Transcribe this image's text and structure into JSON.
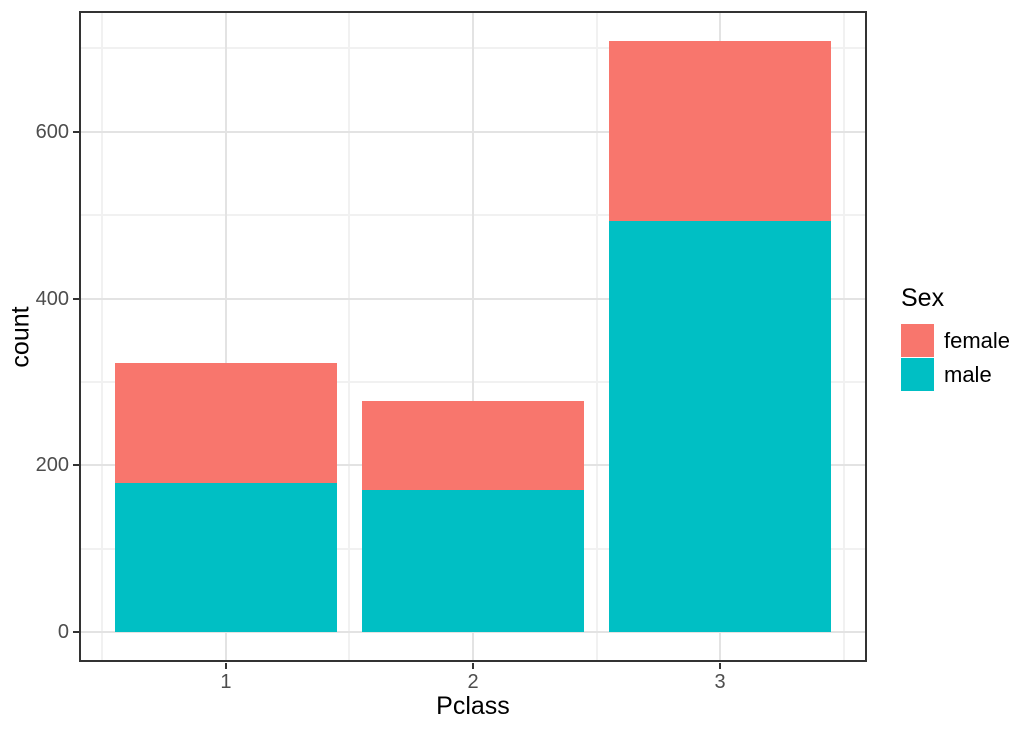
{
  "chart_data": {
    "type": "bar",
    "stacked": true,
    "title": "",
    "xlabel": "Pclass",
    "ylabel": "count",
    "categories": [
      "1",
      "2",
      "3"
    ],
    "x_positions": [
      1,
      2,
      3
    ],
    "series": [
      {
        "name": "female",
        "color": "#F8766D",
        "values": [
          144,
          106,
          216
        ]
      },
      {
        "name": "male",
        "color": "#00BFC4",
        "values": [
          179,
          171,
          493
        ]
      }
    ],
    "stack_bottom_to_top": [
      "male",
      "female"
    ],
    "totals": [
      323,
      277,
      709
    ],
    "bar_width": 0.9,
    "xlim": [
      0.405,
      3.595
    ],
    "ylim": [
      -35.45,
      744.45
    ],
    "y_major_ticks": [
      0,
      200,
      400,
      600
    ],
    "y_tick_labels": [
      "0",
      "200",
      "400",
      "600"
    ],
    "y_minor_ticks": [
      100,
      300,
      500,
      700
    ],
    "x_tick_labels": [
      "1",
      "2",
      "3"
    ],
    "x_minor_positions": [
      0.5,
      1.5,
      2.5,
      3.5
    ],
    "grid": true,
    "legend": {
      "title": "Sex",
      "position": "right",
      "entries": [
        {
          "label": "female",
          "color": "#F8766D"
        },
        {
          "label": "male",
          "color": "#00BFC4"
        }
      ]
    }
  },
  "style": {
    "background": "#FFFFFF",
    "panel_border": "#333333",
    "tick_color": "#333333",
    "tick_label_color": "#4D4D4D",
    "axis_title_color": "#000000",
    "grid_major": "#E3E3E3",
    "grid_minor": "#F1F1F1"
  }
}
